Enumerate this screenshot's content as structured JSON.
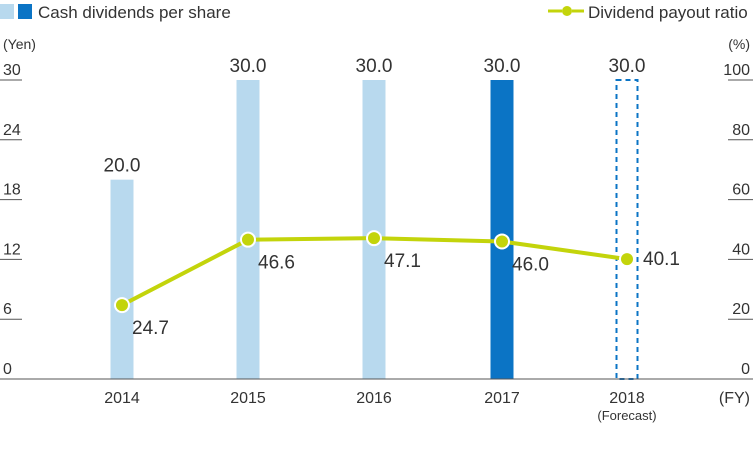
{
  "chart_data": {
    "type": "bar",
    "categories": [
      "2014",
      "2015",
      "2016",
      "2017",
      "2018"
    ],
    "category_notes": [
      "",
      "",
      "",
      "",
      "(Forecast)"
    ],
    "x_unit": "(FY)",
    "left_axis": {
      "unit": "(Yen)",
      "min": 0,
      "max": 30,
      "ticks": [
        "0",
        "6",
        "12",
        "18",
        "24",
        "30"
      ]
    },
    "right_axis": {
      "unit": "(%)",
      "min": 0,
      "max": 100,
      "ticks": [
        "0",
        "20",
        "40",
        "60",
        "80",
        "100"
      ]
    },
    "series": [
      {
        "name": "Cash dividends per share",
        "kind": "bar",
        "axis": "left",
        "values": [
          20.0,
          30.0,
          30.0,
          30.0,
          30.0
        ],
        "labels": [
          "20.0",
          "30.0",
          "30.0",
          "30.0",
          "30.0"
        ],
        "styles": [
          "light",
          "light",
          "light",
          "dark",
          "dashed"
        ]
      },
      {
        "name": "Dividend payout ratio",
        "kind": "line",
        "axis": "right",
        "values": [
          24.7,
          46.6,
          47.1,
          46.0,
          40.1
        ],
        "labels": [
          "24.7",
          "46.6",
          "47.1",
          "46.0",
          "40.1"
        ]
      }
    ],
    "colors": {
      "bar_light": "#b8d9ee",
      "bar_dark": "#0b74c5",
      "bar_dashed_stroke": "#0b74c5",
      "line": "#c3d40b",
      "axis": "#555555",
      "text": "#333333"
    },
    "legend": "top",
    "grid": false
  }
}
